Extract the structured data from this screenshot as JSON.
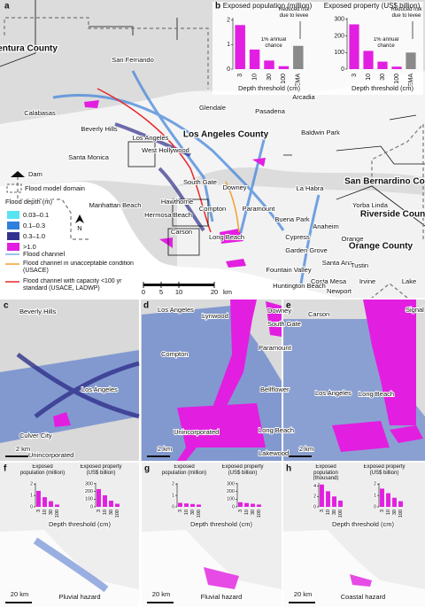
{
  "chart_data": [
    {
      "type": "bar",
      "panel": "b",
      "title": "Exposed population (million)",
      "categories": [
        "3",
        "10",
        "30",
        "100",
        "FEMA"
      ],
      "values": [
        1.8,
        0.8,
        0.35,
        0.12,
        0.95
      ],
      "colors": [
        "#e21fe0",
        "#e21fe0",
        "#e21fe0",
        "#e21fe0",
        "#8a8a8a"
      ],
      "ylim": [
        0,
        2.1
      ],
      "yticks": [
        0,
        1,
        2
      ],
      "xlabel": "Depth threshold (cm)",
      "annotations": [
        "Reduced risk due to levee",
        "1% annual chance"
      ]
    },
    {
      "type": "bar",
      "title": "Exposed property (US$ billion)",
      "categories": [
        "3",
        "10",
        "30",
        "100",
        "FEMA"
      ],
      "values": [
        270,
        110,
        45,
        15,
        100
      ],
      "colors": [
        "#e21fe0",
        "#e21fe0",
        "#e21fe0",
        "#e21fe0",
        "#8a8a8a"
      ],
      "ylim": [
        0,
        310
      ],
      "yticks": [
        0,
        100,
        200,
        300
      ],
      "xlabel": "Depth threshold (cm)",
      "annotations": [
        "Reduced risk due to levee",
        "1% annual chance"
      ]
    },
    {
      "type": "bar",
      "title": "Exposed population (million)",
      "categories": [
        "3",
        "10",
        "30",
        "100"
      ],
      "values": [
        1.4,
        0.85,
        0.5,
        0.2
      ],
      "colors": [
        "#e21fe0",
        "#e21fe0",
        "#e21fe0",
        "#e21fe0"
      ],
      "ylim": [
        0,
        2.1
      ],
      "yticks": [
        0,
        1,
        2
      ]
    },
    {
      "type": "bar",
      "title": "Exposed property (US$ billion)",
      "categories": [
        "3",
        "10",
        "30",
        "100"
      ],
      "values": [
        230,
        150,
        80,
        40
      ],
      "colors": [
        "#e21fe0",
        "#e21fe0",
        "#e21fe0",
        "#e21fe0"
      ],
      "ylim": [
        0,
        310
      ],
      "yticks": [
        0,
        100,
        200,
        300
      ]
    },
    {
      "type": "bar",
      "title": "Exposed population (million)",
      "categories": [
        "3",
        "10",
        "30",
        "100"
      ],
      "values": [
        0.35,
        0.3,
        0.25,
        0.2
      ],
      "colors": [
        "#e21fe0",
        "#e21fe0",
        "#e21fe0",
        "#e21fe0"
      ],
      "ylim": [
        0,
        2.1
      ],
      "yticks": [
        0,
        1,
        2
      ]
    },
    {
      "type": "bar",
      "title": "Exposed property (US$ billion)",
      "categories": [
        "3",
        "10",
        "30",
        "100"
      ],
      "values": [
        60,
        50,
        40,
        30
      ],
      "colors": [
        "#e21fe0",
        "#e21fe0",
        "#e21fe0",
        "#e21fe0"
      ],
      "ylim": [
        0,
        310
      ],
      "yticks": [
        0,
        100,
        200,
        300
      ]
    },
    {
      "type": "bar",
      "title": "Exposed population (thousand)",
      "categories": [
        "3",
        "10",
        "30",
        "100"
      ],
      "values": [
        4.3,
        3.0,
        2.0,
        1.2
      ],
      "colors": [
        "#e21fe0",
        "#e21fe0",
        "#e21fe0",
        "#e21fe0"
      ],
      "ylim": [
        0,
        4.6
      ],
      "yticks": [
        0,
        2,
        4
      ]
    },
    {
      "type": "bar",
      "title": "Exposed property (US$ billion)",
      "categories": [
        "3",
        "10",
        "30",
        "100"
      ],
      "values": [
        1.6,
        1.2,
        0.8,
        0.5
      ],
      "colors": [
        "#e21fe0",
        "#e21fe0",
        "#e21fe0",
        "#e21fe0"
      ],
      "ylim": [
        0,
        2.1
      ],
      "yticks": [
        0,
        1,
        2
      ]
    }
  ],
  "map": {
    "a": {
      "letter": "a",
      "places": [
        "San Fernando",
        "Glendale",
        "Pasadena",
        "Arcadia",
        "Baldwin Park",
        "Calabasas",
        "Beverly Hills",
        "Los Angeles",
        "West Hollywood",
        "Santa Monica",
        "South Gate",
        "Downey",
        "Manhattan Beach",
        "Hawthorne",
        "Hermosa Beach",
        "Compton",
        "Paramount",
        "Carson",
        "Long Beach",
        "La Habra",
        "Yorba Linda",
        "Buena Park",
        "Anaheim",
        "Cypress",
        "Garden Grove",
        "Orange",
        "Fountain Valley",
        "Santa Ana",
        "Tustin",
        "Irvine",
        "Costa Mesa",
        "Huntington Beach",
        "Newport",
        "Lake"
      ],
      "counties": [
        "Ventura County",
        "Los Angeles County",
        "San Bernardino County",
        "Riverside County",
        "Orange County"
      ],
      "legend": {
        "dam": "Dam",
        "domain": "Flood model domain",
        "depth_title": "Flood depth (m)",
        "depth_classes": [
          "0.03–0.1",
          "0.1–0.3",
          "0.3–1.0",
          ">1.0"
        ],
        "depth_colors": [
          "#58e3f2",
          "#2f7fdc",
          "#33338f",
          "#e21fe0"
        ],
        "channel": "Flood channel",
        "channel_unacceptable": "Flood channel in unacceptable condition (USACE)",
        "channel_capacity": "Flood channel with capacity <100 yr standard (USACE, LADWP)",
        "north": "N"
      },
      "scale": {
        "ticks": [
          0,
          5,
          10,
          20
        ],
        "unit": "km"
      }
    },
    "b": {
      "letter": "b"
    },
    "c": {
      "letter": "c",
      "labels": [
        "Beverly Hills",
        "Los Angeles",
        "Culver City",
        "Unincorporated"
      ],
      "scale": "2 km"
    },
    "d": {
      "letter": "d",
      "labels": [
        "Los Angeles",
        "Lynwood",
        "Downey",
        "South Gate",
        "Compton",
        "Paramount",
        "Bellflower",
        "Unincorporated",
        "Long Beach",
        "Lakewood"
      ],
      "scale": "2 km"
    },
    "e": {
      "letter": "e",
      "labels": [
        "Carson",
        "Signal Hill",
        "Los Angeles",
        "Long Beach"
      ],
      "scale": "2 km"
    },
    "f": {
      "letter": "f",
      "hazard": "Pluvial hazard",
      "xlabel": "Depth threshold (cm)",
      "scale": "20 km"
    },
    "g": {
      "letter": "g",
      "hazard": "Fluvial hazard",
      "xlabel": "Depth threshold (cm)",
      "scale": "20 km"
    },
    "h": {
      "letter": "h",
      "hazard": "Coastal hazard",
      "xlabel": "Depth threshold (cm)",
      "scale": "20 km"
    }
  }
}
